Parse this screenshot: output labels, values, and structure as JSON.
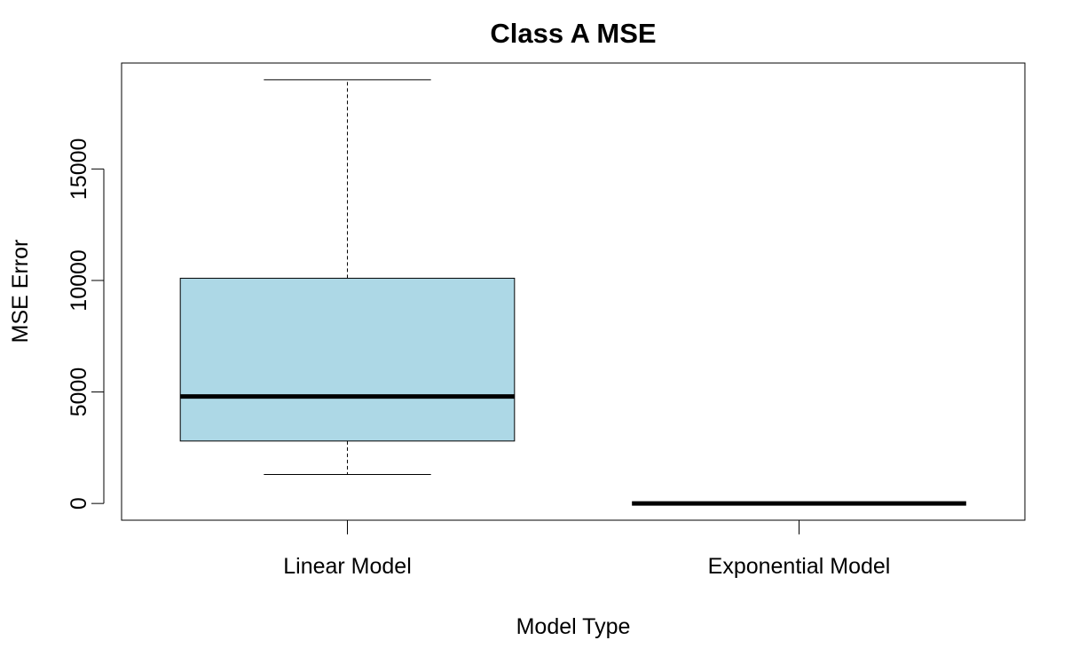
{
  "chart_data": {
    "type": "boxplot",
    "title": "Class A MSE",
    "xlabel": "Model Type",
    "ylabel": "MSE Error",
    "ylim": [
      -750,
      19750
    ],
    "yticks": [
      0,
      5000,
      10000,
      15000
    ],
    "categories": [
      "Linear Model",
      "Exponential Model"
    ],
    "series": [
      {
        "category": "Linear Model",
        "whisker_low": 1300,
        "q1": 2800,
        "median": 4800,
        "q3": 10100,
        "whisker_high": 19000,
        "fill": "#add8e6"
      },
      {
        "category": "Exponential Model",
        "whisker_low": 0,
        "q1": 0,
        "median": 0,
        "q3": 0,
        "whisker_high": 0,
        "fill": "#add8e6"
      }
    ],
    "grid": false,
    "legend": "none"
  }
}
